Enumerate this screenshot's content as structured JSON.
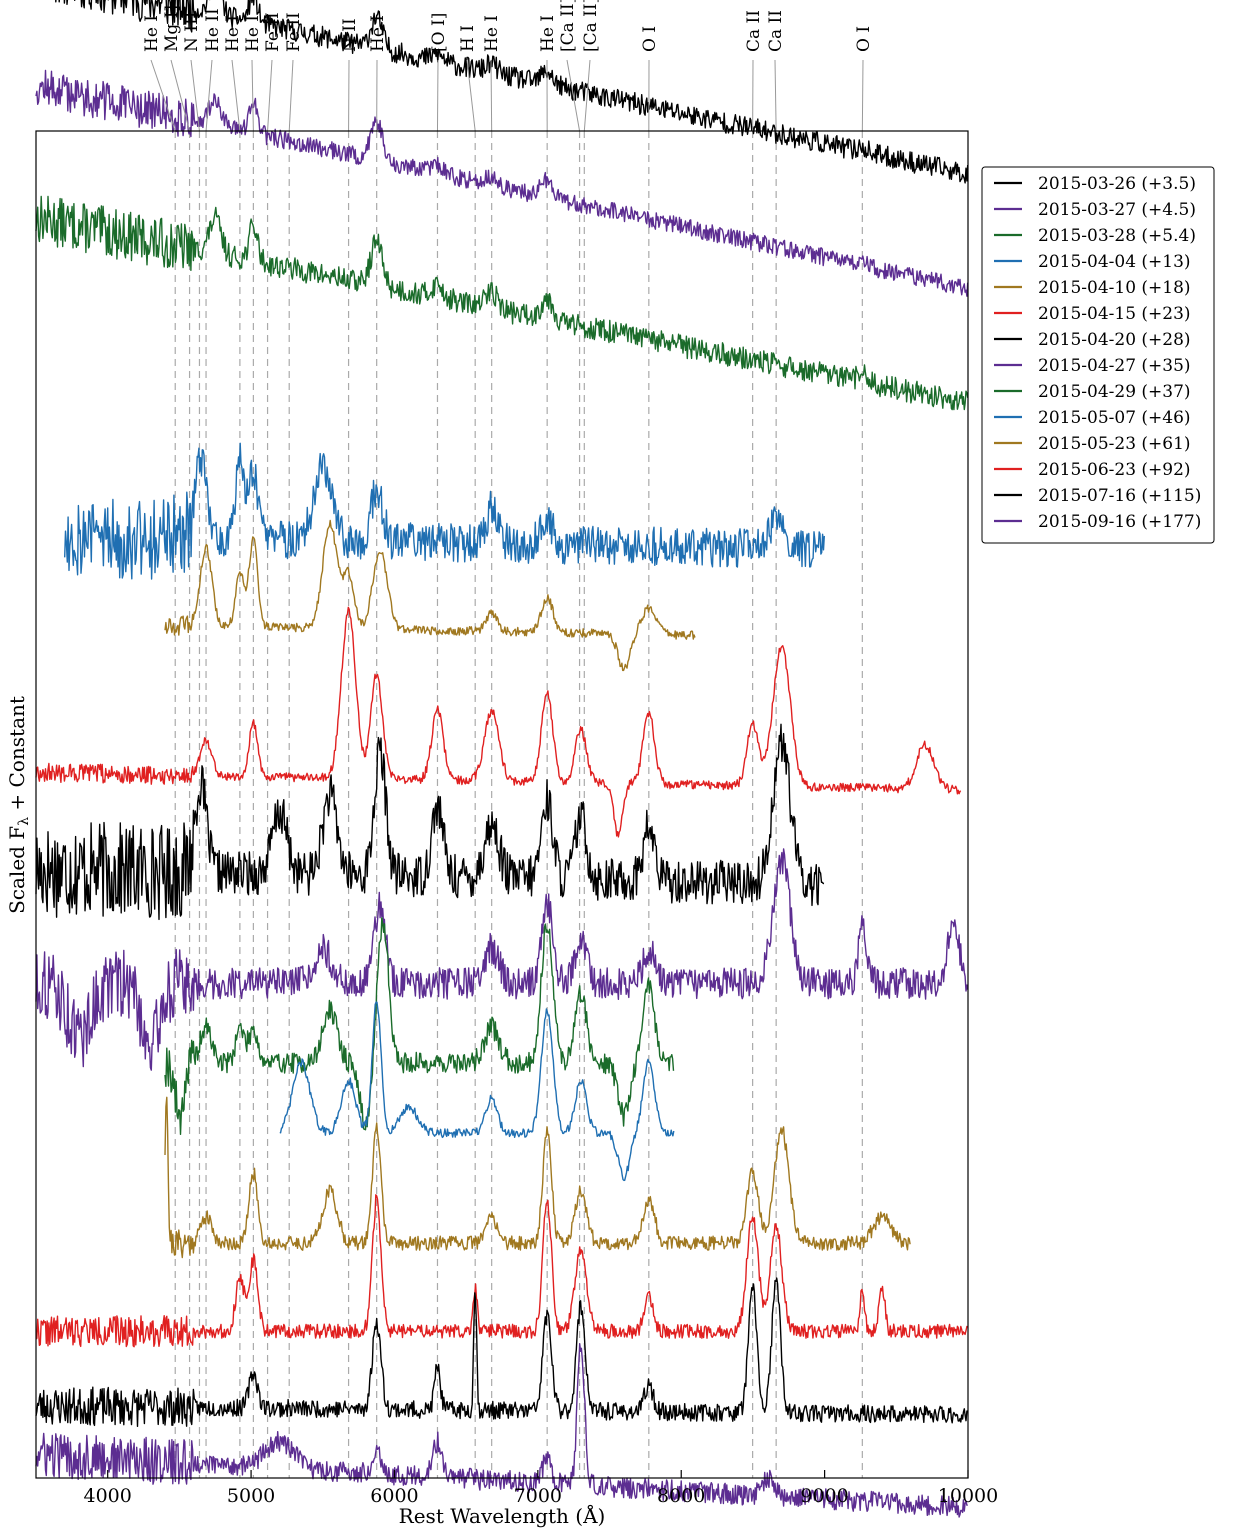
{
  "chart_data": {
    "type": "line",
    "xlabel": "Rest Wavelength (Å)",
    "ylabel": "Scaled F",
    "ylabel_sub": "λ",
    "ylabel_suffix": " + Constant",
    "xlim": [
      3500,
      10000
    ],
    "xticks": [
      4000,
      5000,
      6000,
      7000,
      8000,
      9000,
      10000
    ],
    "grid": false,
    "legend_position": "right-outside",
    "lines": [
      {
        "label": "He I",
        "x": 4471
      },
      {
        "label": "Mg I]",
        "x": 4571
      },
      {
        "label": "N III",
        "x": 4640
      },
      {
        "label": "He II",
        "x": 4686
      },
      {
        "label": "He I",
        "x": 4922
      },
      {
        "label": "He I",
        "x": 5016
      },
      {
        "label": "Fe II",
        "x": 5115
      },
      {
        "label": "Fe II",
        "x": 5266
      },
      {
        "label": "N II",
        "x": 5680
      },
      {
        "label": "He I",
        "x": 5876
      },
      {
        "label": "[O I]",
        "x": 6300
      },
      {
        "label": "H I",
        "x": 6563
      },
      {
        "label": "He I",
        "x": 6678
      },
      {
        "label": "He I",
        "x": 7065
      },
      {
        "label": "[Ca II]",
        "x": 7291
      },
      {
        "label": "[Ca II]",
        "x": 7324
      },
      {
        "label": "O I",
        "x": 7774
      },
      {
        "label": "Ca II",
        "x": 8498
      },
      {
        "label": "Ca II",
        "x": 8662
      },
      {
        "label": "O I",
        "x": 9263
      }
    ],
    "series": [
      {
        "name": "2015-03-26 (+3.5)",
        "color": "#000000",
        "range": [
          3500,
          10000
        ],
        "offset": 14.35,
        "level": [
          2.4,
          0.15
        ],
        "noise": 0.12,
        "seed": 11,
        "features": [
          [
            4750,
            0.35,
            40
          ],
          [
            5016,
            0.3,
            30
          ],
          [
            5876,
            0.35,
            40
          ],
          [
            6300,
            0.08,
            40
          ],
          [
            6678,
            0.1,
            40
          ],
          [
            7065,
            0.15,
            40
          ],
          [
            9263,
            0.05,
            30
          ]
        ]
      },
      {
        "name": "2015-03-27 (+4.5)",
        "color": "#5c2d91",
        "range": [
          3500,
          10000
        ],
        "offset": 13.0,
        "level": [
          2.5,
          0.2
        ],
        "noise": 0.1,
        "seed": 12,
        "features": [
          [
            4750,
            0.3,
            40
          ],
          [
            5016,
            0.35,
            30
          ],
          [
            5876,
            0.45,
            40
          ],
          [
            6300,
            0.1,
            40
          ],
          [
            6678,
            0.1,
            40
          ],
          [
            7065,
            0.2,
            40
          ],
          [
            9263,
            0.1,
            30
          ]
        ]
      },
      {
        "name": "2015-03-28 (+5.4)",
        "color": "#1a6b2a",
        "range": [
          3500,
          10000
        ],
        "offset": 11.6,
        "level": [
          2.4,
          0.3
        ],
        "noise": 0.13,
        "seed": 13,
        "features": [
          [
            4750,
            0.4,
            40
          ],
          [
            5016,
            0.4,
            30
          ],
          [
            5876,
            0.5,
            40
          ],
          [
            6300,
            0.15,
            40
          ],
          [
            6678,
            0.2,
            40
          ],
          [
            7065,
            0.25,
            40
          ],
          [
            9263,
            0.1,
            30
          ]
        ]
      },
      {
        "name": "2015-04-04 (+13)",
        "color": "#1f6fb2",
        "range": [
          3700,
          9000
        ],
        "offset": 10.2,
        "level": [
          0.2,
          0.0
        ],
        "noise": 0.22,
        "seed": 14,
        "features": [
          [
            4650,
            0.9,
            40
          ],
          [
            4922,
            0.9,
            30
          ],
          [
            5016,
            0.8,
            30
          ],
          [
            5500,
            0.8,
            60
          ],
          [
            5876,
            0.6,
            40
          ],
          [
            6678,
            0.4,
            40
          ],
          [
            7065,
            0.3,
            40
          ],
          [
            8662,
            0.4,
            40
          ]
        ]
      },
      {
        "name": "2015-04-10 (+18)",
        "color": "#a07820",
        "range": [
          4400,
          8100
        ],
        "offset": 9.2,
        "level": [
          0.2,
          0.0
        ],
        "noise": 0.05,
        "seed": 15,
        "features": [
          [
            4686,
            0.9,
            40
          ],
          [
            4922,
            0.6,
            30
          ],
          [
            5016,
            1.0,
            30
          ],
          [
            5550,
            1.2,
            50
          ],
          [
            5680,
            0.6,
            40
          ],
          [
            5900,
            0.9,
            50
          ],
          [
            6678,
            0.2,
            40
          ],
          [
            7065,
            0.4,
            40
          ],
          [
            7600,
            -0.4,
            40
          ],
          [
            7774,
            0.3,
            50
          ]
        ]
      },
      {
        "name": "2015-04-15 (+23)",
        "color": "#e02020",
        "range": [
          3500,
          9950
        ],
        "offset": 7.5,
        "level": [
          0.2,
          0.0
        ],
        "noise": 0.05,
        "seed": 16,
        "features": [
          [
            4686,
            0.4,
            40
          ],
          [
            5016,
            0.6,
            30
          ],
          [
            5680,
            1.9,
            50
          ],
          [
            5876,
            1.2,
            40
          ],
          [
            6300,
            0.8,
            40
          ],
          [
            6678,
            0.8,
            50
          ],
          [
            7065,
            1.0,
            40
          ],
          [
            7300,
            0.6,
            40
          ],
          [
            7560,
            -0.6,
            30
          ],
          [
            7774,
            0.8,
            40
          ],
          [
            8498,
            0.7,
            40
          ],
          [
            8700,
            1.6,
            60
          ],
          [
            9700,
            0.5,
            60
          ]
        ]
      },
      {
        "name": "2015-04-20 (+28)",
        "color": "#000000",
        "range": [
          3500,
          9000
        ],
        "offset": 6.4,
        "level": [
          0.2,
          0.0
        ],
        "noise": 0.25,
        "seed": 17,
        "features": [
          [
            4650,
            1.0,
            40
          ],
          [
            5200,
            0.7,
            50
          ],
          [
            5550,
            0.9,
            50
          ],
          [
            5900,
            1.4,
            40
          ],
          [
            6300,
            0.8,
            40
          ],
          [
            6678,
            0.6,
            50
          ],
          [
            7065,
            0.9,
            40
          ],
          [
            7300,
            0.7,
            40
          ],
          [
            7774,
            0.6,
            40
          ],
          [
            8700,
            1.6,
            60
          ]
        ]
      },
      {
        "name": "2015-04-27 (+35)",
        "color": "#5c2d91",
        "range": [
          3500,
          10000
        ],
        "offset": 5.3,
        "level": [
          0.0,
          0.0
        ],
        "noise": 0.18,
        "seed": 18,
        "features": [
          [
            3800,
            -0.6,
            80
          ],
          [
            4300,
            -0.7,
            60
          ],
          [
            5500,
            0.4,
            60
          ],
          [
            5900,
            0.9,
            40
          ],
          [
            6678,
            0.4,
            50
          ],
          [
            7065,
            0.9,
            40
          ],
          [
            7300,
            0.5,
            40
          ],
          [
            7774,
            0.4,
            40
          ],
          [
            8700,
            1.4,
            60
          ],
          [
            9263,
            0.6,
            30
          ],
          [
            9900,
            0.7,
            40
          ]
        ]
      },
      {
        "name": "2015-04-29 (+37)",
        "color": "#1a6b2a",
        "range": [
          4400,
          7950
        ],
        "offset": 4.4,
        "level": [
          0.0,
          0.0
        ],
        "noise": 0.12,
        "seed": 19,
        "features": [
          [
            4500,
            -0.6,
            30
          ],
          [
            4686,
            0.4,
            40
          ],
          [
            4922,
            0.4,
            30
          ],
          [
            5016,
            0.4,
            30
          ],
          [
            5550,
            0.6,
            50
          ],
          [
            5800,
            -0.7,
            40
          ],
          [
            5920,
            1.6,
            40
          ],
          [
            6678,
            0.4,
            50
          ],
          [
            7065,
            1.6,
            40
          ],
          [
            7300,
            0.8,
            40
          ],
          [
            7600,
            -0.6,
            40
          ],
          [
            7774,
            0.9,
            40
          ]
        ]
      },
      {
        "name": "2015-05-07 (+46)",
        "color": "#1f6fb2",
        "range": [
          5200,
          7950
        ],
        "offset": 3.6,
        "level": [
          0.0,
          0.0
        ],
        "noise": 0.05,
        "seed": 20,
        "features": [
          [
            5350,
            0.8,
            60
          ],
          [
            5680,
            0.6,
            50
          ],
          [
            5876,
            1.5,
            30
          ],
          [
            6100,
            0.3,
            60
          ],
          [
            6678,
            0.4,
            40
          ],
          [
            7065,
            1.4,
            40
          ],
          [
            7300,
            0.6,
            40
          ],
          [
            7600,
            -0.5,
            40
          ],
          [
            7774,
            0.8,
            40
          ]
        ]
      },
      {
        "name": "2015-05-23 (+61)",
        "color": "#a07820",
        "range": [
          4400,
          9600
        ],
        "offset": 2.35,
        "level": [
          0.0,
          0.0
        ],
        "noise": 0.08,
        "seed": 21,
        "features": [
          [
            4410,
            1.8,
            10
          ],
          [
            4686,
            0.3,
            40
          ],
          [
            5016,
            0.8,
            30
          ],
          [
            5550,
            0.6,
            50
          ],
          [
            5876,
            1.3,
            30
          ],
          [
            6678,
            0.3,
            40
          ],
          [
            7065,
            1.3,
            30
          ],
          [
            7300,
            0.6,
            40
          ],
          [
            7774,
            0.5,
            40
          ],
          [
            8498,
            0.8,
            40
          ],
          [
            8700,
            1.3,
            50
          ],
          [
            9400,
            0.3,
            60
          ]
        ]
      },
      {
        "name": "2015-06-23 (+92)",
        "color": "#e02020",
        "range": [
          3500,
          10000
        ],
        "offset": 1.35,
        "level": [
          0.0,
          0.0
        ],
        "noise": 0.08,
        "seed": 22,
        "features": [
          [
            4922,
            0.6,
            30
          ],
          [
            5016,
            0.8,
            30
          ],
          [
            5876,
            1.5,
            30
          ],
          [
            6563,
            0.5,
            15
          ],
          [
            7065,
            1.5,
            30
          ],
          [
            7300,
            0.9,
            40
          ],
          [
            7774,
            0.4,
            30
          ],
          [
            8498,
            1.3,
            40
          ],
          [
            8662,
            1.2,
            40
          ],
          [
            9263,
            0.5,
            15
          ],
          [
            9400,
            0.5,
            20
          ]
        ]
      },
      {
        "name": "2015-07-16 (+115)",
        "color": "#000000",
        "range": [
          3500,
          10000
        ],
        "offset": 0.4,
        "level": [
          0.1,
          0.0
        ],
        "noise": 0.1,
        "seed": 23,
        "features": [
          [
            5016,
            0.4,
            30
          ],
          [
            5876,
            1.0,
            30
          ],
          [
            6300,
            0.5,
            20
          ],
          [
            6563,
            1.4,
            10
          ],
          [
            7065,
            1.1,
            30
          ],
          [
            7300,
            1.2,
            30
          ],
          [
            7774,
            0.3,
            30
          ],
          [
            8498,
            1.4,
            30
          ],
          [
            8662,
            1.5,
            30
          ]
        ]
      },
      {
        "name": "2015-09-16 (+177)",
        "color": "#5c2d91",
        "range": [
          3500,
          10000
        ],
        "offset": -0.65,
        "level": [
          0.6,
          0.0
        ],
        "noise": 0.12,
        "seed": 24,
        "features": [
          [
            5200,
            0.3,
            100
          ],
          [
            5876,
            0.3,
            30
          ],
          [
            6300,
            0.4,
            30
          ],
          [
            7065,
            0.3,
            30
          ],
          [
            7300,
            1.6,
            25
          ],
          [
            8600,
            0.2,
            40
          ]
        ]
      }
    ]
  }
}
